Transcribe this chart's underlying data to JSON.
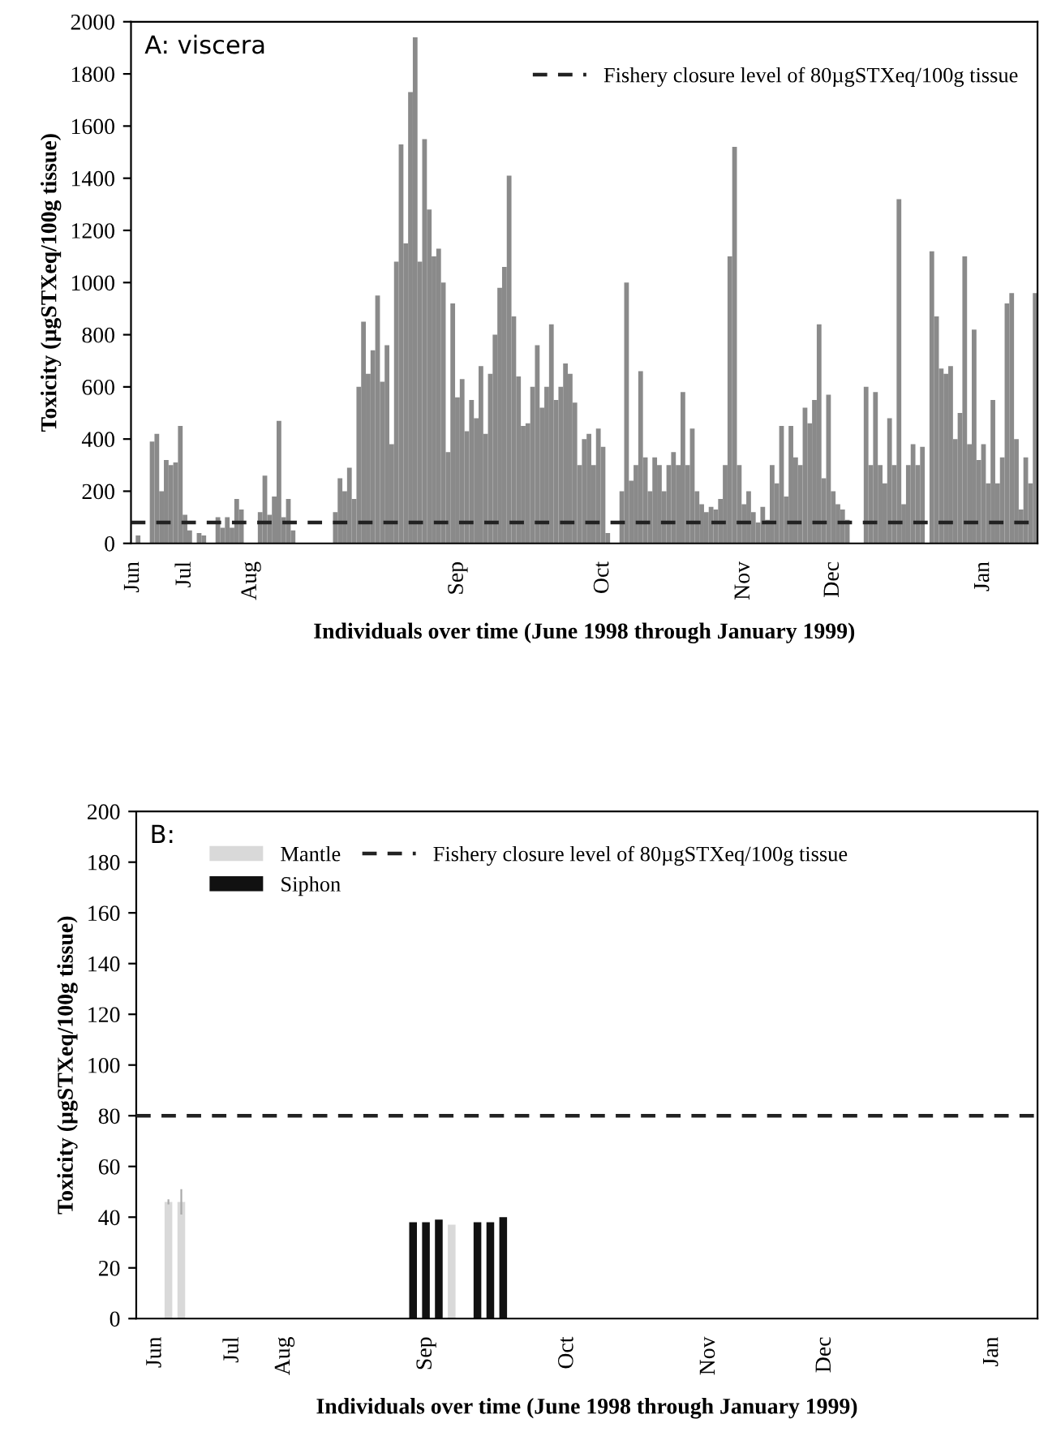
{
  "chart_data": [
    {
      "type": "bar",
      "annotations": [
        "A: viscera"
      ],
      "xlabel": "Individuals over time (June 1998 through January 1999)",
      "ylabel": "Toxicity (µgSTXeq/100g tissue)",
      "categories": [
        "Jun",
        null,
        null,
        null,
        null,
        null,
        null,
        null,
        null,
        null,
        null,
        "Jul",
        null,
        null,
        null,
        null,
        null,
        null,
        null,
        null,
        null,
        null,
        null,
        null,
        null,
        "Aug",
        null,
        null,
        null,
        null,
        null,
        null,
        null,
        null,
        null,
        null,
        null,
        null,
        null,
        null,
        null,
        null,
        null,
        null,
        null,
        null,
        null,
        null,
        null,
        null,
        null,
        null,
        null,
        null,
        null,
        null,
        null,
        null,
        null,
        null,
        null,
        null,
        null,
        null,
        null,
        null,
        null,
        null,
        null,
        "Sep",
        null,
        null,
        null,
        null,
        null,
        null,
        null,
        null,
        null,
        null,
        null,
        null,
        null,
        null,
        null,
        null,
        null,
        null,
        null,
        null,
        null,
        null,
        null,
        null,
        null,
        null,
        null,
        null,
        null,
        null,
        "Oct",
        null,
        null,
        null,
        null,
        null,
        null,
        null,
        null,
        null,
        null,
        null,
        null,
        null,
        null,
        null,
        null,
        null,
        null,
        null,
        null,
        null,
        null,
        null,
        null,
        null,
        null,
        null,
        null,
        null,
        "Nov",
        null,
        null,
        null,
        null,
        null,
        null,
        null,
        null,
        null,
        null,
        null,
        null,
        null,
        null,
        null,
        null,
        null,
        null,
        "Dec",
        null,
        null,
        null,
        null,
        null,
        null,
        null,
        null,
        null,
        null,
        null,
        null,
        null,
        null,
        null,
        null,
        null,
        null,
        null,
        null,
        null,
        null,
        null,
        null,
        null,
        null,
        null,
        null,
        null,
        null,
        null,
        "Jan",
        null,
        null,
        null,
        null,
        null,
        null,
        null,
        null,
        null,
        null,
        null
      ],
      "ylim": [
        0,
        2000
      ],
      "yticks": [
        0,
        200,
        400,
        600,
        800,
        1000,
        1200,
        1400,
        1600,
        1800,
        2000
      ],
      "series": [
        {
          "color": "#8a8a8a",
          "values": [
            null,
            30,
            null,
            null,
            390,
            420,
            200,
            320,
            300,
            310,
            450,
            110,
            50,
            null,
            40,
            30,
            null,
            null,
            100,
            60,
            100,
            60,
            170,
            130,
            null,
            null,
            null,
            120,
            260,
            110,
            180,
            470,
            100,
            170,
            50,
            null,
            null,
            null,
            null,
            null,
            null,
            null,
            null,
            120,
            250,
            200,
            290,
            170,
            600,
            850,
            650,
            740,
            950,
            620,
            760,
            380,
            1080,
            1530,
            1150,
            1730,
            1940,
            1080,
            1550,
            1280,
            1100,
            1130,
            1000,
            350,
            920,
            560,
            630,
            430,
            550,
            480,
            680,
            420,
            650,
            800,
            980,
            1060,
            1410,
            870,
            640,
            450,
            460,
            600,
            760,
            520,
            600,
            840,
            550,
            600,
            690,
            650,
            540,
            300,
            400,
            420,
            300,
            440,
            370,
            40,
            null,
            null,
            200,
            1000,
            240,
            300,
            660,
            330,
            200,
            330,
            300,
            200,
            300,
            350,
            300,
            580,
            300,
            440,
            200,
            150,
            120,
            140,
            130,
            170,
            300,
            1100,
            1520,
            300,
            150,
            200,
            120,
            80,
            140,
            90,
            300,
            230,
            450,
            180,
            450,
            330,
            300,
            520,
            460,
            550,
            840,
            250,
            570,
            200,
            150,
            130,
            90,
            null,
            null,
            null,
            600,
            300,
            580,
            300,
            230,
            480,
            300,
            1320,
            150,
            300,
            380,
            300,
            370,
            null,
            1120,
            870,
            670,
            650,
            680,
            400,
            500,
            1100,
            380,
            820,
            320,
            380,
            230,
            550,
            230,
            330,
            920,
            960,
            400,
            130,
            330,
            230,
            960
          ]
        }
      ],
      "ref_lines": [
        {
          "axis": "y",
          "value": 80,
          "label": "Fishery closure level of 80µgSTXeq/100g tissue",
          "line_style": "dashed",
          "color": "#222222"
        }
      ],
      "legend": "top right",
      "grid": false
    },
    {
      "type": "bar",
      "annotations": [
        "B:"
      ],
      "xlabel": "Individuals over time (June 1998 through January 1999)",
      "ylabel": "Toxicity (µgSTXeq/100g tissue)",
      "categories": [
        null,
        "Jun",
        null,
        null,
        null,
        null,
        null,
        "Jul",
        null,
        null,
        null,
        "Aug",
        null,
        null,
        null,
        null,
        null,
        null,
        null,
        null,
        null,
        null,
        "Sep",
        null,
        null,
        null,
        null,
        null,
        null,
        null,
        null,
        null,
        null,
        "Oct",
        null,
        null,
        null,
        null,
        null,
        null,
        null,
        null,
        null,
        null,
        "Nov",
        null,
        null,
        null,
        null,
        null,
        null,
        null,
        null,
        "Dec",
        null,
        null,
        null,
        null,
        null,
        null,
        null,
        null,
        null,
        null,
        null,
        null,
        "Jan",
        null,
        null,
        null
      ],
      "ylim": [
        0,
        200
      ],
      "yticks": [
        0,
        20,
        40,
        60,
        80,
        100,
        120,
        140,
        160,
        180,
        200
      ],
      "series": [
        {
          "name": "Mantle",
          "color": "#d9d9d9",
          "values": [
            null,
            null,
            46,
            46,
            null,
            null,
            null,
            null,
            null,
            null,
            null,
            null,
            null,
            null,
            null,
            null,
            null,
            null,
            null,
            null,
            null,
            null,
            null,
            null,
            37,
            null,
            null,
            null,
            null,
            null,
            null,
            null,
            null,
            null,
            null,
            null,
            null,
            null,
            null,
            null,
            null,
            null,
            null,
            null,
            null,
            null,
            null,
            null,
            null,
            null,
            null,
            null,
            null,
            null,
            null,
            null,
            null,
            null,
            null,
            null,
            null,
            null,
            null,
            null,
            null,
            null,
            null,
            null,
            null,
            null
          ],
          "errors": [
            null,
            null,
            1,
            5,
            null,
            null,
            null,
            null,
            null,
            null,
            null,
            null,
            null,
            null,
            null,
            null,
            null,
            null,
            null,
            null,
            null,
            null,
            null,
            null,
            null,
            null,
            null,
            null,
            null,
            null,
            null,
            null,
            null,
            null,
            null,
            null,
            null,
            null,
            null,
            null,
            null,
            null,
            null,
            null,
            null,
            null,
            null,
            null,
            null,
            null,
            null,
            null,
            null,
            null,
            null,
            null,
            null,
            null,
            null,
            null,
            null,
            null,
            null,
            null,
            null,
            null,
            null,
            null,
            null,
            null
          ]
        },
        {
          "name": "Siphon",
          "color": "#111111",
          "values": [
            null,
            null,
            null,
            null,
            null,
            null,
            null,
            null,
            null,
            null,
            null,
            null,
            null,
            null,
            null,
            null,
            null,
            null,
            null,
            null,
            null,
            38,
            38,
            39,
            null,
            null,
            38,
            38,
            40,
            null,
            null,
            null,
            null,
            null,
            null,
            null,
            null,
            null,
            null,
            null,
            null,
            null,
            null,
            null,
            null,
            null,
            null,
            null,
            null,
            null,
            null,
            null,
            null,
            null,
            null,
            null,
            null,
            null,
            null,
            null,
            null,
            null,
            null,
            null,
            null,
            null,
            null,
            null,
            null,
            null
          ]
        }
      ],
      "ref_lines": [
        {
          "axis": "y",
          "value": 80,
          "label": "Fishery closure level of 80µgSTXeq/100g tissue",
          "line_style": "dashed",
          "color": "#222222"
        }
      ],
      "legend": "top left",
      "grid": false
    }
  ]
}
